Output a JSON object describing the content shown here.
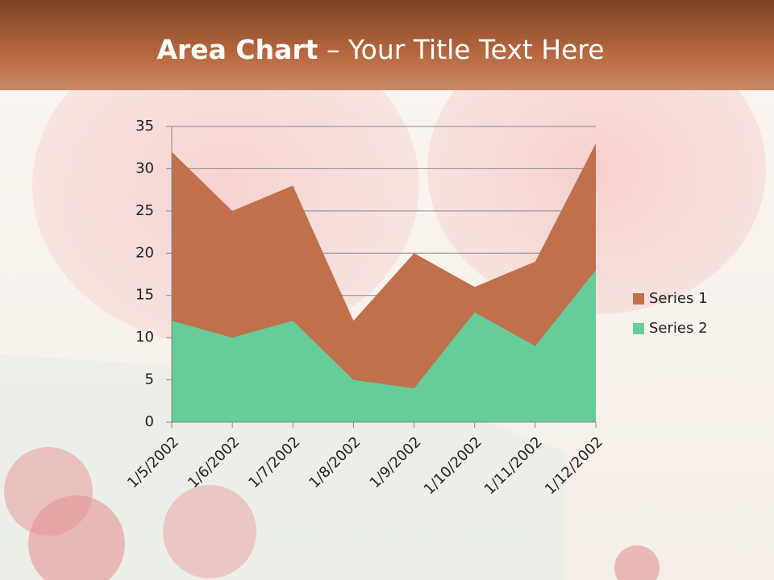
{
  "chart_data": {
    "type": "area",
    "title": [
      "Area Chart",
      " – Your Title Text Here"
    ],
    "categories": [
      "1/5/2002",
      "1/6/2002",
      "1/7/2002",
      "1/8/2002",
      "1/9/2002",
      "1/10/2002",
      "1/11/2002",
      "1/12/2002"
    ],
    "series": [
      {
        "name": "Series 1",
        "color": "#c0704a",
        "values": [
          32,
          25,
          28,
          12,
          20,
          16,
          19,
          33
        ]
      },
      {
        "name": "Series 2",
        "color": "#66cc99",
        "values": [
          12,
          10,
          12,
          5,
          4,
          13,
          9,
          18
        ]
      }
    ],
    "ylim": [
      0,
      35
    ],
    "yticks": [
      0,
      5,
      10,
      15,
      20,
      25,
      30,
      35
    ],
    "grid": true,
    "legend": "right"
  }
}
